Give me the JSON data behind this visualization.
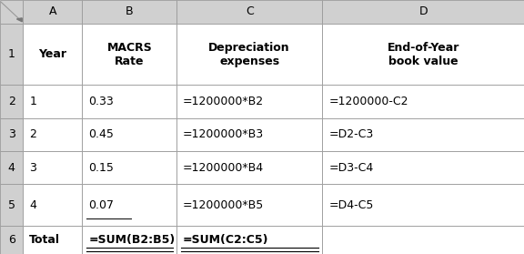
{
  "col_labels": [
    "A",
    "B",
    "C",
    "D"
  ],
  "row_labels": [
    "1",
    "2",
    "3",
    "4",
    "5",
    "6"
  ],
  "header_texts": [
    "Year",
    "MACRS\nRate",
    "Depreciation\nexpenses",
    "End-of-Year\nbook value"
  ],
  "data_rows": [
    [
      "1",
      "0.33",
      "=1200000*B2",
      "=1200000-C2"
    ],
    [
      "2",
      "0.45",
      "=1200000*B3",
      "=D2-C3"
    ],
    [
      "3",
      "0.15",
      "=1200000*B4",
      "=D3-C4"
    ],
    [
      "4",
      "0.07",
      "=1200000*B5",
      "=D4-C5"
    ],
    [
      "Total",
      "=SUM(B2:B5)",
      "=SUM(C2:C5)",
      ""
    ]
  ],
  "fig_width": 5.76,
  "fig_height": 2.79,
  "dpi": 100,
  "header_bg": "#d0d0d0",
  "body_bg": "#ffffff",
  "border_color": "#999999",
  "text_color": "#000000"
}
